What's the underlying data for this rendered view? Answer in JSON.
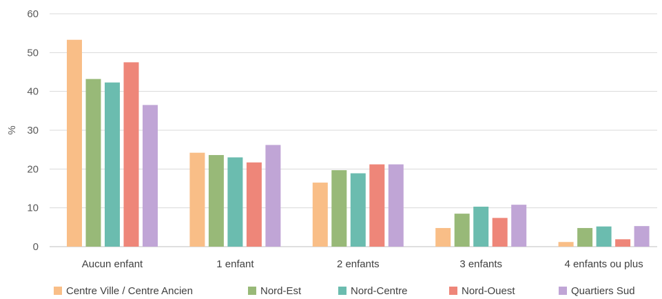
{
  "chart_data": {
    "type": "bar",
    "title": "",
    "xlabel": "",
    "ylabel": "%",
    "ylim": [
      0,
      60
    ],
    "yticks": [
      0,
      10,
      20,
      30,
      40,
      50,
      60
    ],
    "grid": true,
    "legend_position": "bottom",
    "categories": [
      "Aucun enfant",
      "1 enfant",
      "2 enfants",
      "3 enfants",
      "4 enfants ou plus"
    ],
    "series": [
      {
        "name": "Centre Ville / Centre Ancien",
        "color": "#F9BE87",
        "values": [
          53.3,
          24.2,
          16.5,
          4.8,
          1.2
        ]
      },
      {
        "name": "Nord-Est",
        "color": "#98B978",
        "values": [
          43.2,
          23.6,
          19.7,
          8.5,
          4.8
        ]
      },
      {
        "name": "Nord-Centre",
        "color": "#6BBCAF",
        "values": [
          42.3,
          23.0,
          18.9,
          10.3,
          5.2
        ]
      },
      {
        "name": "Nord-Ouest",
        "color": "#EE8679",
        "values": [
          47.5,
          21.7,
          21.2,
          7.4,
          1.9
        ]
      },
      {
        "name": "Quartiers Sud",
        "color": "#C0A5D6",
        "values": [
          36.5,
          26.2,
          21.2,
          10.8,
          5.3
        ]
      }
    ]
  }
}
